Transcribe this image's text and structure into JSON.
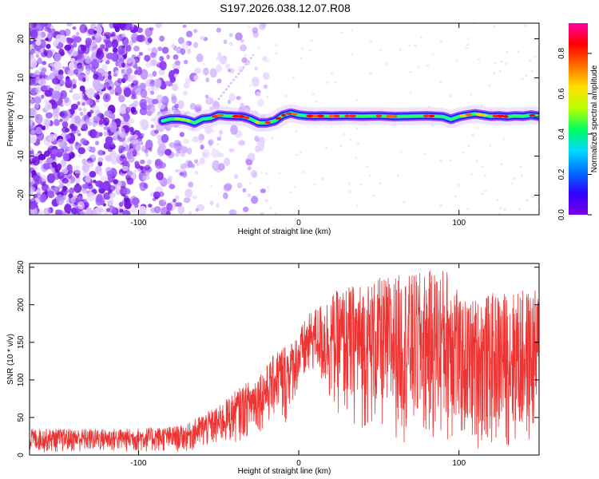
{
  "title": "S197.2026.038.12.07.R08",
  "chart_data": [
    {
      "type": "heatmap",
      "xlabel": "Height of straight line (km)",
      "ylabel": "Frequency (Hz)",
      "xlim": [
        -168,
        150
      ],
      "ylim": [
        -25,
        24
      ],
      "xticks": [
        "-100",
        "0",
        "100"
      ],
      "xtick_values": [
        -100,
        0,
        100
      ],
      "yticks": [
        "20",
        "10",
        "0",
        "-10",
        "-20"
      ],
      "ytick_values": [
        20,
        10,
        0,
        -10,
        -20
      ],
      "colorbar": {
        "label": "Normalized spectral amplitude",
        "range": [
          0,
          0.95
        ],
        "ticks": [
          "0.0",
          "0.2",
          "0.4",
          "0.6",
          "0.8"
        ],
        "tick_values": [
          0,
          0.2,
          0.4,
          0.6,
          0.8
        ],
        "colormap": [
          "#7a00e6",
          "#3000ff",
          "#0070ff",
          "#00d8ff",
          "#00ff60",
          "#b8ff00",
          "#ffe000",
          "#ff7000",
          "#ff0000",
          "#ff00a0"
        ]
      },
      "ridge": {
        "x": [
          -85,
          -80,
          -75,
          -70,
          -65,
          -60,
          -55,
          -50,
          -45,
          -40,
          -35,
          -30,
          -25,
          -20,
          -15,
          -10,
          -5,
          0,
          5,
          10,
          15,
          20,
          30,
          40,
          50,
          60,
          70,
          80,
          90,
          95,
          100,
          105,
          110,
          115,
          120,
          125,
          130,
          135,
          140,
          145,
          150
        ],
        "y": [
          -1,
          -0.5,
          -0.5,
          -0.8,
          -1.5,
          -0.5,
          -0.3,
          0.5,
          0.3,
          0.2,
          0.1,
          -0.5,
          -1.5,
          -1.5,
          -1,
          0.4,
          1,
          0.5,
          0.3,
          0.2,
          0.3,
          0.2,
          0.3,
          0.2,
          0.3,
          0.1,
          0.2,
          0.3,
          0.1,
          -0.6,
          0.1,
          0.5,
          0.8,
          0.5,
          0.2,
          0.3,
          0.1,
          0.3,
          0.2,
          0.5,
          0.2
        ]
      },
      "noise_region_x": [
        -168,
        -60
      ]
    },
    {
      "type": "line",
      "xlabel": "Height of straight line (km)",
      "ylabel": "SNR (10 * v/v)",
      "xlim": [
        -168,
        150
      ],
      "ylim": [
        0,
        255
      ],
      "xticks": [
        "-100",
        "0",
        "100"
      ],
      "xtick_values": [
        -100,
        0,
        100
      ],
      "yticks": [
        "0",
        "50",
        "100",
        "150",
        "200",
        "250"
      ],
      "ytick_values": [
        0,
        50,
        100,
        150,
        200,
        250
      ],
      "color": "#ee3333",
      "envelope": {
        "x": [
          -168,
          -140,
          -110,
          -80,
          -70,
          -60,
          -50,
          -40,
          -30,
          -20,
          -12,
          -10,
          -5,
          0,
          5,
          10,
          15,
          20,
          30,
          40,
          50,
          60,
          70,
          80,
          90,
          95,
          98,
          100,
          110,
          120,
          130,
          140,
          150
        ],
        "lower": [
          3,
          3,
          3,
          3,
          4,
          6,
          10,
          15,
          25,
          35,
          55,
          20,
          65,
          80,
          90,
          110,
          80,
          60,
          40,
          30,
          25,
          20,
          15,
          10,
          10,
          10,
          10,
          10,
          5,
          5,
          5,
          5,
          5
        ],
        "upper": [
          35,
          35,
          35,
          38,
          40,
          55,
          65,
          85,
          100,
          120,
          145,
          150,
          150,
          165,
          185,
          195,
          205,
          215,
          225,
          230,
          235,
          240,
          240,
          245,
          250,
          250,
          250,
          205,
          210,
          215,
          218,
          220,
          220
        ]
      }
    }
  ]
}
